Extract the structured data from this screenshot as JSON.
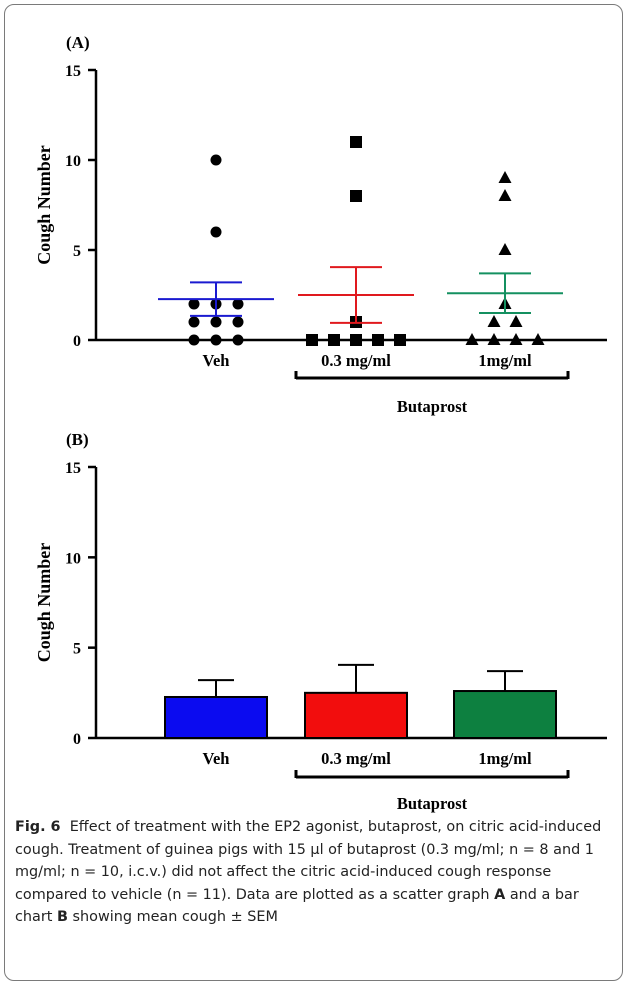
{
  "chart_data": [
    {
      "type": "scatter",
      "panel_label": "(A)",
      "ylabel": "Cough Number",
      "ylim": [
        0,
        15
      ],
      "yticks": [
        "0",
        "5",
        "10",
        "15"
      ],
      "categories": [
        "Veh",
        "0.3 mg/ml",
        "1mg/ml"
      ],
      "group_label": "Butaprost",
      "series": [
        {
          "category": "Veh",
          "marker": "circle",
          "color": "#1a1ad0",
          "points": [
            10,
            6,
            2,
            2,
            2,
            1,
            1,
            1,
            0,
            0,
            0
          ],
          "mean": 2.27,
          "sem": 0.93
        },
        {
          "category": "0.3 mg/ml",
          "marker": "square",
          "color": "#e0191e",
          "points": [
            11,
            8,
            1,
            0,
            0,
            0,
            0,
            0
          ],
          "mean": 2.5,
          "sem": 1.55
        },
        {
          "category": "1mg/ml",
          "marker": "triangle",
          "color": "#149060",
          "points": [
            9,
            8,
            5,
            2,
            1,
            1,
            0,
            0,
            0,
            0
          ],
          "mean": 2.6,
          "sem": 1.1
        }
      ]
    },
    {
      "type": "bar",
      "panel_label": "(B)",
      "ylabel": "Cough Number",
      "ylim": [
        0,
        15
      ],
      "yticks": [
        "0",
        "5",
        "10",
        "15"
      ],
      "categories": [
        "Veh",
        "0.3 mg/ml",
        "1mg/ml"
      ],
      "group_label": "Butaprost",
      "values": [
        2.27,
        2.5,
        2.6
      ],
      "sem": [
        0.93,
        1.55,
        1.1
      ],
      "colors": [
        "#0b0bf0",
        "#f20d0d",
        "#0d8040"
      ]
    }
  ],
  "caption": {
    "fig_label": "Fig. 6",
    "text_1": "Effect of treatment with the EP2 agonist, butaprost, on citric acid-induced cough. Treatment of guinea pigs with 15 µl of butaprost (0.3 mg/ml; n = 8 and 1 mg/ml; n = 10, i.c.v.) did not affect the citric acid-induced cough response compared to vehicle (n = 11). Data are plotted as a scatter graph ",
    "bold_a": "A",
    "text_2": " and a bar chart ",
    "bold_b": "B",
    "text_3": " showing mean cough ± SEM"
  }
}
